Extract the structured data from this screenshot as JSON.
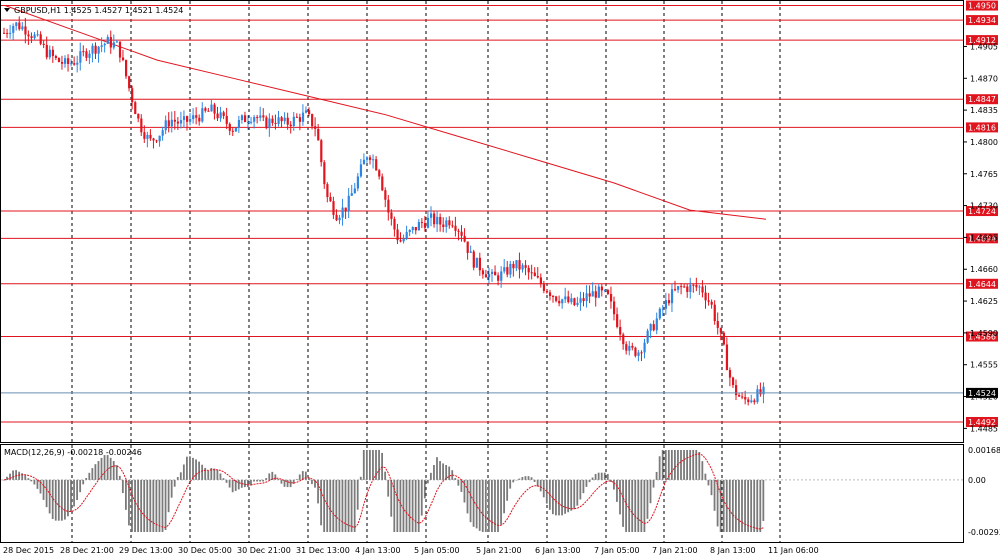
{
  "header": {
    "symbol_title": "GBPUSD,H1  1.4525 1.4527 1.4521 1.4524",
    "macd_title": "MACD(12,26,9) -0.00218 -0.00246"
  },
  "colors": {
    "bull": "#2f86e0",
    "bear": "#e0141e",
    "hline": "#e0141e",
    "ma": "#e0141e",
    "grid": "#000000",
    "macd_hist": "#7a7a7a",
    "signal": "#e0141e",
    "current_price_line": "#6a8fb5"
  },
  "chart_data": [
    {
      "type": "candlestick",
      "symbol": "GBPUSD",
      "timeframe": "H1",
      "ohlc_last": {
        "open": 1.4525,
        "high": 1.4527,
        "low": 1.4521,
        "close": 1.4524
      },
      "ylim": [
        1.447,
        1.4955
      ],
      "price_ticks": [
        "1.4905",
        "1.4870",
        "1.4835",
        "1.4800",
        "1.4765",
        "1.4730",
        "1.4695",
        "1.4660",
        "1.4625",
        "1.4590",
        "1.4555",
        "1.4520",
        "1.4485"
      ],
      "x_labels": [
        "28 Dec 2015",
        "28 Dec 21:00",
        "29 Dec 13:00",
        "30 Dec 05:00",
        "30 Dec 21:00",
        "31 Dec 13:00",
        "4 Jan 13:00",
        "5 Jan 05:00",
        "5 Jan 21:00",
        "6 Jan 13:00",
        "7 Jan 05:00",
        "7 Jan 21:00",
        "8 Jan 13:00",
        "11 Jan 06:00"
      ],
      "horizontal_levels": [
        "1.4950",
        "1.4934",
        "1.4912",
        "1.4847",
        "1.4816",
        "1.4724",
        "1.4694",
        "1.4644",
        "1.4586",
        "1.4492"
      ],
      "current_price": "1.4524",
      "moving_average_path": [
        1.495,
        1.492,
        1.489,
        1.487,
        1.485,
        1.483,
        1.4805,
        1.478,
        1.4755,
        1.4725,
        1.4715
      ],
      "price_path": [
        1.492,
        1.493,
        1.4925,
        1.4915,
        1.49,
        1.489,
        1.4885,
        1.489,
        1.49,
        1.4905,
        1.491,
        1.4905,
        1.486,
        1.482,
        1.48,
        1.481,
        1.4825,
        1.482,
        1.4825,
        1.483,
        1.4835,
        1.4825,
        1.4815,
        1.4825,
        1.483,
        1.482,
        1.4825,
        1.482,
        1.4825,
        1.483,
        1.4815,
        1.474,
        1.472,
        1.473,
        1.476,
        1.479,
        1.477,
        1.472,
        1.469,
        1.47,
        1.471,
        1.4715,
        1.471,
        1.4715,
        1.47,
        1.467,
        1.466,
        1.465,
        1.4655,
        1.4665,
        1.466,
        1.465,
        1.464,
        1.463,
        1.4625,
        1.462,
        1.463,
        1.4635,
        1.463,
        1.46,
        1.457,
        1.457,
        1.459,
        1.461,
        1.463,
        1.464,
        1.464,
        1.464,
        1.462,
        1.458,
        1.453,
        1.4515,
        1.452,
        1.4524
      ]
    },
    {
      "type": "bar",
      "name": "MACD(12,26,9)",
      "main": -0.00218,
      "signal_value": -0.00246,
      "ylim": [
        -0.00293,
        0.00168
      ],
      "ticks": [
        "0.00168",
        "0.00",
        "-0.00293"
      ]
    }
  ]
}
